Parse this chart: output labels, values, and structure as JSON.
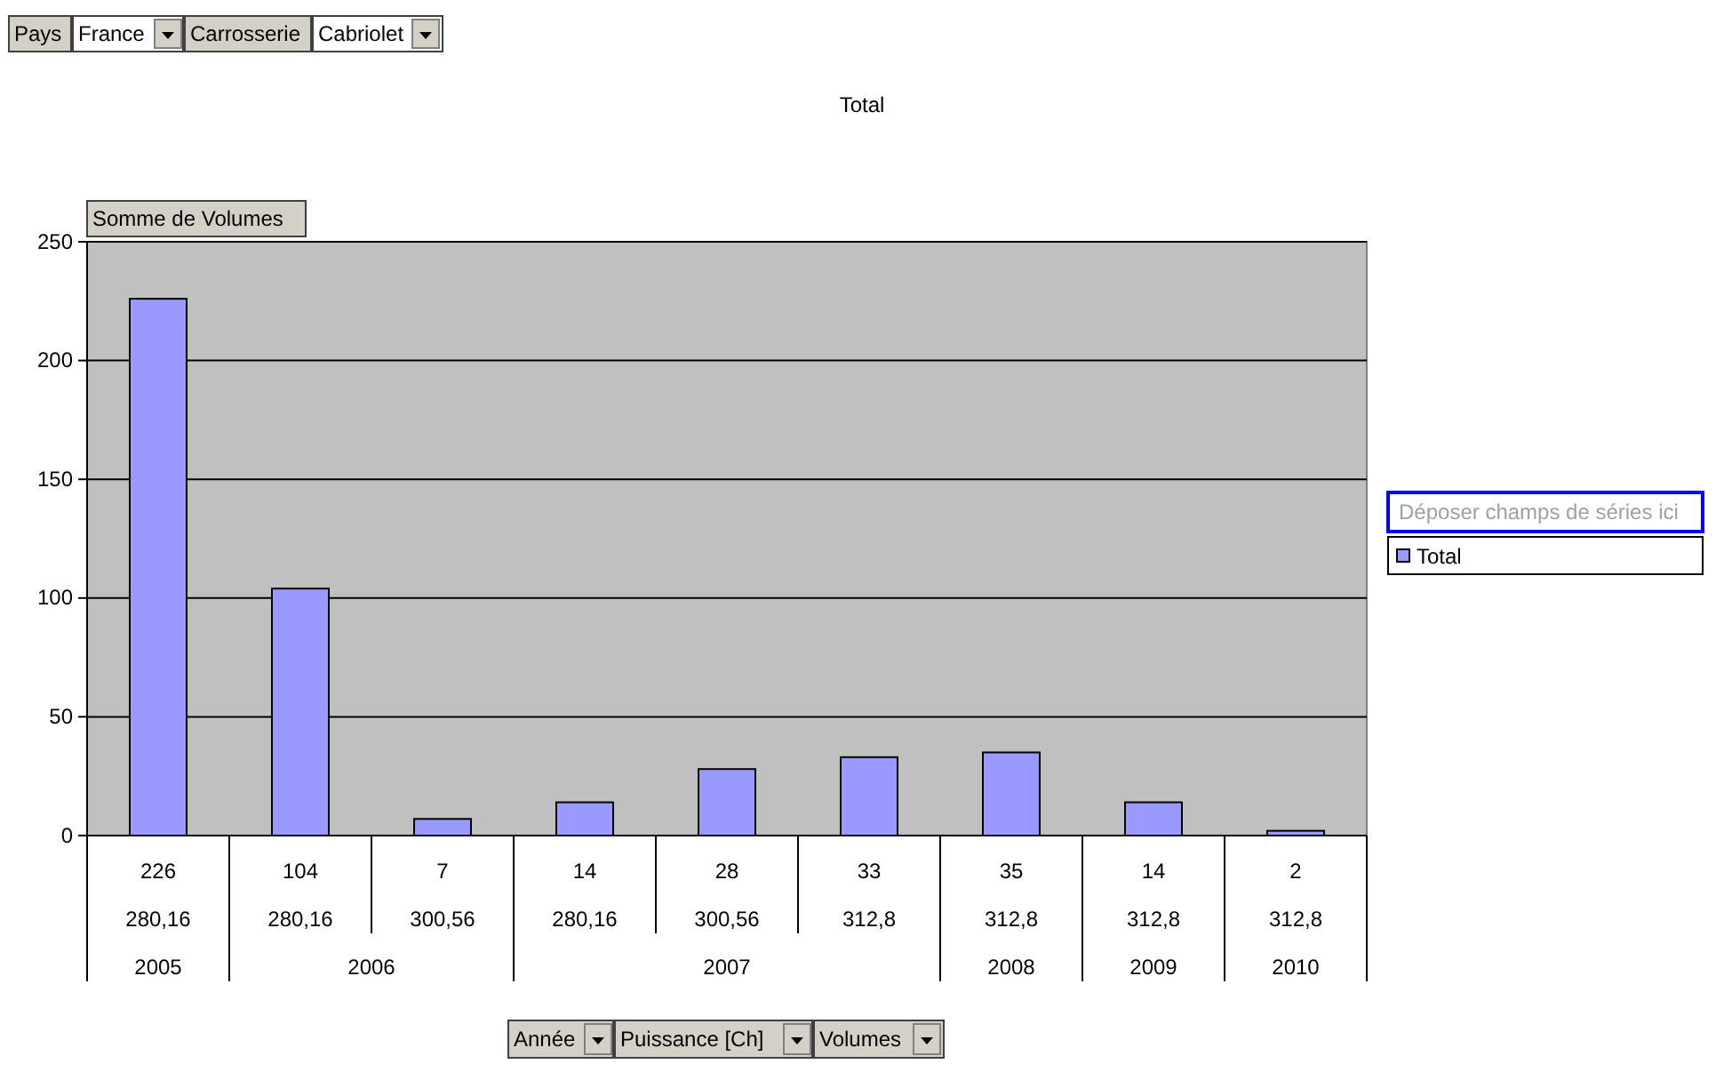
{
  "chart_data": {
    "type": "bar",
    "title": "Total",
    "categories": [
      "280,16",
      "280,16",
      "300,56",
      "280,16",
      "300,56",
      "312,8",
      "312,8",
      "312,8",
      "312,8"
    ],
    "series": [
      {
        "name": "Total",
        "color": "#9999ff",
        "values": [
          226,
          104,
          7,
          14,
          28,
          33,
          35,
          14,
          2
        ]
      }
    ],
    "data_labels": true,
    "ylim": [
      0,
      250
    ],
    "yticks": [
      0,
      50,
      100,
      150,
      200,
      250
    ],
    "grid": "y",
    "legend": "right",
    "annotations": [
      "Pays",
      "France",
      "Carrosserie",
      "Cabriolet",
      "Somme de Volumes",
      "Déposer champs de séries ici",
      "Année",
      "Puissance [Ch]",
      "Volumes",
      "2005",
      "2006",
      "2007",
      "2008",
      "2009",
      "2010"
    ]
  }
}
